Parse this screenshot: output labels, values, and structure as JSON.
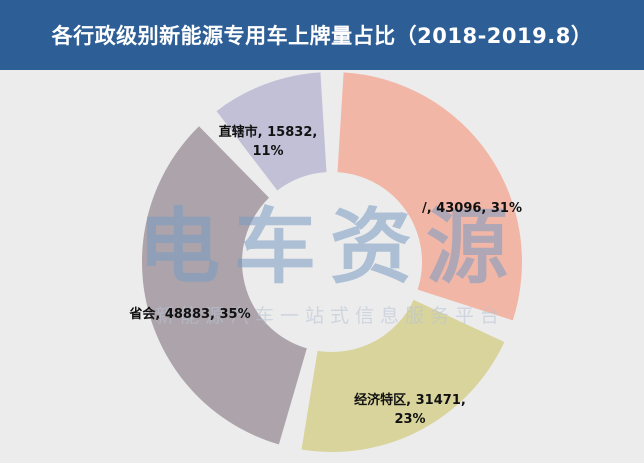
{
  "title": "各行政级别新能源专用车上牌量占比（2018-2019.8）",
  "watermark": {
    "brand": "电车资源",
    "slogan": "新能源汽车一站式信息服务平台"
  },
  "colors": {
    "title_bg": "#2d5f96",
    "background": "#ececec",
    "watermark": "#8aa7c8"
  },
  "chart_data": {
    "type": "pie",
    "variant": "doughnut",
    "slices": [
      {
        "label": "/",
        "value": 43096,
        "percent": "31%",
        "color": "#f2b6a6",
        "display": "/, 43096, 31%"
      },
      {
        "label": "经济特区",
        "value": 31471,
        "percent": "23%",
        "color": "#d8d49b",
        "display": "经济特区, 31471, 23%"
      },
      {
        "label": "省会",
        "value": 48883,
        "percent": "35%",
        "color": "#aca3ab",
        "display": "省会, 48883, 35%"
      },
      {
        "label": "直辖市",
        "value": 15832,
        "percent": "11%",
        "color": "#c2c0d7",
        "display": "直辖市, 15832, 11%"
      }
    ]
  }
}
